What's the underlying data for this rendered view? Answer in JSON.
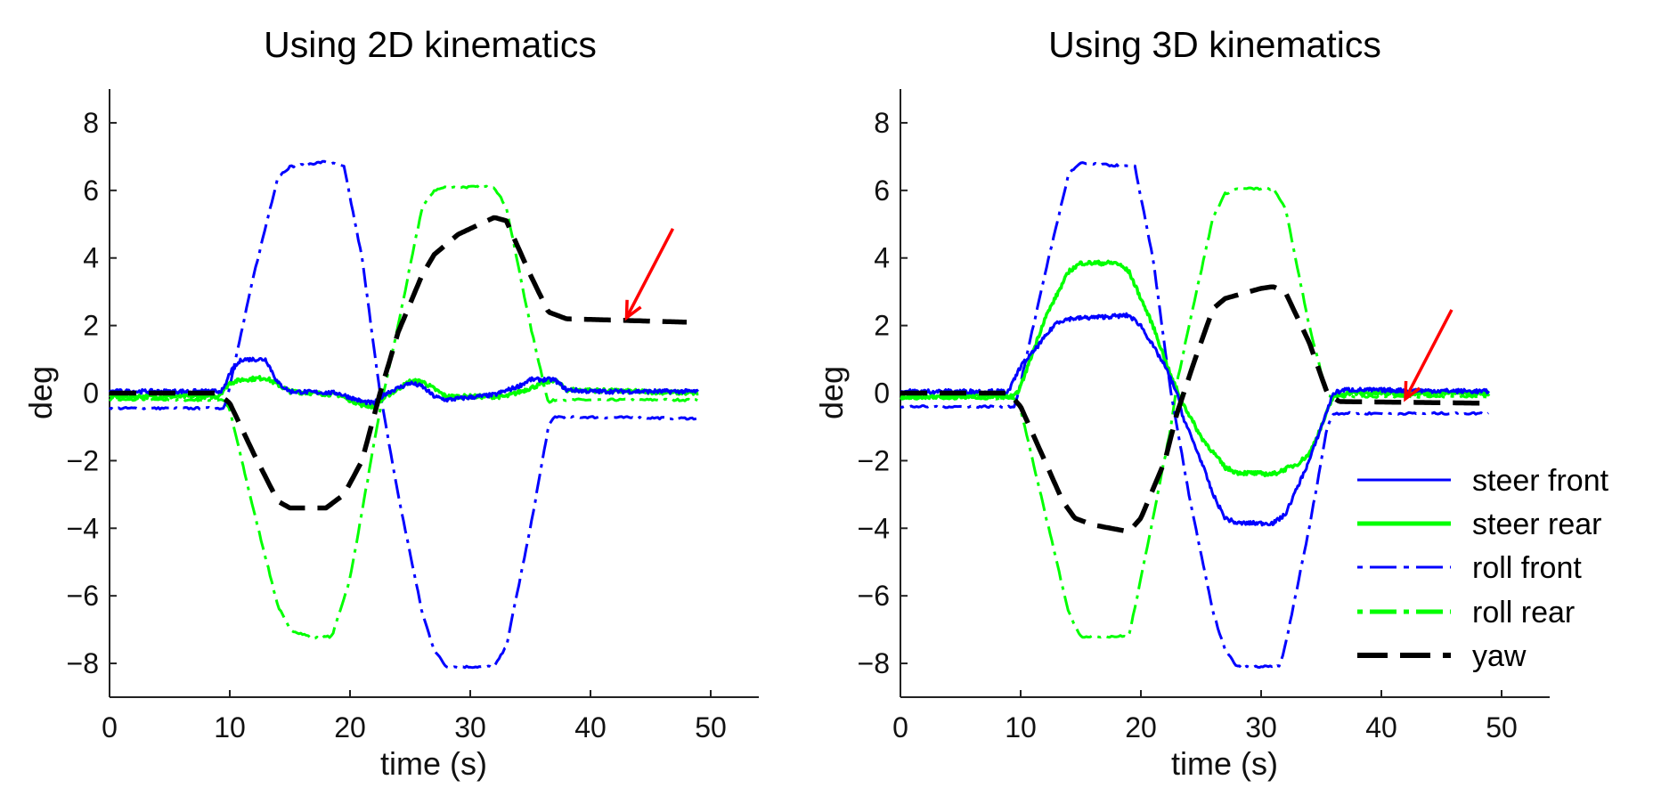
{
  "chart_data": [
    {
      "type": "line",
      "title": "Using 2D kinematics",
      "xlabel": "time (s)",
      "ylabel": "deg",
      "xlim": [
        0,
        54
      ],
      "ylim": [
        -9,
        9
      ],
      "grid": false,
      "xticks": [
        0,
        10,
        20,
        30,
        40,
        50
      ],
      "xtick_labels": [
        "0",
        "10",
        "20",
        "30",
        "40",
        "50"
      ],
      "yticks": [
        8,
        6,
        4,
        2,
        0,
        -2,
        -4,
        -6,
        -8
      ],
      "ytick_labels": [
        "8",
        "6",
        "4",
        "2",
        "0",
        "−2",
        "−4",
        "−6",
        "−8"
      ],
      "annotation": {
        "type": "red-arrow",
        "points_to": [
          43,
          2.1
        ],
        "color": "#ff0000"
      },
      "series": [
        {
          "name": "steer front",
          "color": "#0000ff",
          "style": "solid",
          "x": [
            0,
            9,
            9.5,
            10,
            11,
            13,
            14,
            15,
            19,
            21,
            22,
            23,
            25,
            26,
            27,
            28,
            32,
            34,
            35,
            37,
            38,
            40,
            49
          ],
          "y": [
            0.05,
            0.05,
            0.1,
            0.6,
            1.0,
            1.0,
            0.3,
            0.05,
            0,
            -0.25,
            -0.3,
            0,
            0.3,
            0.2,
            -0.1,
            -0.2,
            -0.05,
            0.2,
            0.4,
            0.4,
            0.1,
            0.05,
            0.05
          ]
        },
        {
          "name": "steer rear",
          "color": "#00ff00",
          "style": "solid",
          "x": [
            0,
            9,
            10,
            11,
            13,
            15,
            19,
            21,
            22,
            23,
            25,
            26,
            28,
            33,
            37,
            38,
            49
          ],
          "y": [
            -0.1,
            -0.1,
            0.3,
            0.4,
            0.45,
            0.05,
            -0.05,
            -0.35,
            -0.4,
            -0.1,
            0.35,
            0.35,
            -0.1,
            -0.1,
            0.4,
            0.1,
            0.0
          ]
        },
        {
          "name": "roll front",
          "color": "#0000ff",
          "style": "dashdot",
          "x": [
            0,
            9.5,
            10,
            12,
            14,
            15,
            18,
            19.5,
            21,
            22.5,
            24,
            26,
            27,
            28,
            32,
            33,
            35,
            36.5,
            37,
            49
          ],
          "y": [
            -0.45,
            -0.45,
            0.2,
            3.5,
            6.4,
            6.7,
            6.85,
            6.7,
            4,
            0,
            -3,
            -6.5,
            -7.6,
            -8.1,
            -8.1,
            -7.5,
            -4,
            -1,
            -0.7,
            -0.75
          ]
        },
        {
          "name": "roll rear",
          "color": "#00ff00",
          "style": "dashdot",
          "x": [
            0,
            9.5,
            10,
            12,
            14,
            15,
            17,
            18.5,
            20,
            22.5,
            24,
            26,
            27,
            28,
            32,
            33,
            35,
            36.5,
            37,
            49
          ],
          "y": [
            -0.2,
            -0.2,
            -0.5,
            -3.5,
            -6.3,
            -7,
            -7.25,
            -7.2,
            -5.5,
            -0.5,
            2,
            5.5,
            6,
            6.1,
            6.1,
            5.5,
            2,
            -0.3,
            -0.2,
            -0.2
          ]
        },
        {
          "name": "yaw",
          "color": "#000000",
          "style": "dashed",
          "x": [
            0,
            9,
            10,
            12,
            14,
            15,
            18,
            19.5,
            21,
            22.5,
            24,
            26,
            27,
            29,
            32,
            33,
            35,
            36.5,
            38,
            48
          ],
          "y": [
            0,
            0,
            -0.3,
            -1.8,
            -3.2,
            -3.4,
            -3.4,
            -3,
            -2,
            0,
            1.8,
            3.5,
            4.1,
            4.7,
            5.2,
            5.1,
            3.5,
            2.4,
            2.2,
            2.1
          ]
        }
      ]
    },
    {
      "type": "line",
      "title": "Using 3D kinematics",
      "xlabel": "time (s)",
      "ylabel": "deg",
      "xlim": [
        0,
        54
      ],
      "ylim": [
        -9,
        9
      ],
      "grid": false,
      "legend_position": "bottom-right",
      "xticks": [
        0,
        10,
        20,
        30,
        40,
        50
      ],
      "xtick_labels": [
        "0",
        "10",
        "20",
        "30",
        "40",
        "50"
      ],
      "yticks": [
        8,
        6,
        4,
        2,
        0,
        -2,
        -4,
        -6,
        -8
      ],
      "ytick_labels": [
        "8",
        "6",
        "4",
        "2",
        "0",
        "−2",
        "−4",
        "−6",
        "−8"
      ],
      "annotation": {
        "type": "red-arrow",
        "points_to": [
          42,
          -0.3
        ],
        "color": "#ff0000"
      },
      "series": [
        {
          "name": "steer front",
          "color": "#0000ff",
          "style": "solid",
          "x": [
            0,
            9,
            10,
            11,
            13,
            14,
            19,
            20,
            22,
            23,
            23.5,
            25,
            26,
            27,
            28,
            31,
            32,
            34,
            35,
            36,
            37,
            49
          ],
          "y": [
            0.05,
            0.05,
            0.8,
            1.2,
            2.1,
            2.2,
            2.3,
            2.0,
            0.8,
            0,
            -0.7,
            -2,
            -3,
            -3.7,
            -3.85,
            -3.85,
            -3.6,
            -2,
            -1,
            0,
            0.1,
            0.05
          ]
        },
        {
          "name": "steer rear",
          "color": "#00ff00",
          "style": "solid",
          "x": [
            0,
            9.5,
            10,
            12,
            14,
            15,
            18,
            19,
            21,
            22.5,
            23.5,
            25,
            27,
            28,
            31,
            33,
            34,
            35,
            36,
            37,
            49
          ],
          "y": [
            -0.1,
            -0.1,
            0.2,
            2.2,
            3.6,
            3.85,
            3.85,
            3.6,
            2,
            0.5,
            -0.3,
            -1.3,
            -2.2,
            -2.35,
            -2.4,
            -2.1,
            -1.8,
            -1,
            -0.1,
            0,
            0
          ]
        },
        {
          "name": "roll front",
          "color": "#0000ff",
          "style": "dashdot",
          "x": [
            0,
            9.5,
            10,
            12,
            14,
            15,
            19.5,
            21,
            22.5,
            24,
            26,
            27,
            28,
            31.5,
            32,
            34,
            35.5,
            36,
            49
          ],
          "y": [
            -0.4,
            -0.4,
            0.3,
            3.5,
            6.5,
            6.8,
            6.7,
            4,
            0,
            -3,
            -6.5,
            -7.6,
            -8.1,
            -8.1,
            -7.5,
            -4,
            -1,
            -0.6,
            -0.6
          ]
        },
        {
          "name": "roll rear",
          "color": "#00ff00",
          "style": "dashdot",
          "x": [
            0,
            9.5,
            10,
            12,
            14,
            15,
            19,
            20,
            22.5,
            23,
            24,
            26,
            27,
            28,
            31,
            32,
            34,
            35.5,
            49
          ],
          "y": [
            -0.15,
            -0.15,
            -0.5,
            -3.5,
            -6.5,
            -7.2,
            -7.2,
            -5.5,
            -1,
            0.3,
            2,
            5.2,
            5.9,
            6.05,
            6.05,
            5.5,
            2,
            -0.1,
            -0.1
          ]
        },
        {
          "name": "yaw",
          "color": "#000000",
          "style": "dashed",
          "x": [
            0,
            9,
            10,
            12,
            13.5,
            14.5,
            16,
            19,
            20,
            22,
            23,
            24.5,
            26,
            27,
            30,
            31,
            32,
            34,
            35.5,
            36.5,
            49
          ],
          "y": [
            0,
            0,
            -0.4,
            -2,
            -3.2,
            -3.7,
            -3.9,
            -4.1,
            -3.7,
            -2,
            -0.6,
            1,
            2.5,
            2.8,
            3.1,
            3.15,
            3,
            1.5,
            0,
            -0.25,
            -0.3
          ]
        }
      ],
      "legend": [
        "steer front",
        "steer rear",
        "roll front",
        "roll rear",
        "yaw"
      ]
    }
  ]
}
